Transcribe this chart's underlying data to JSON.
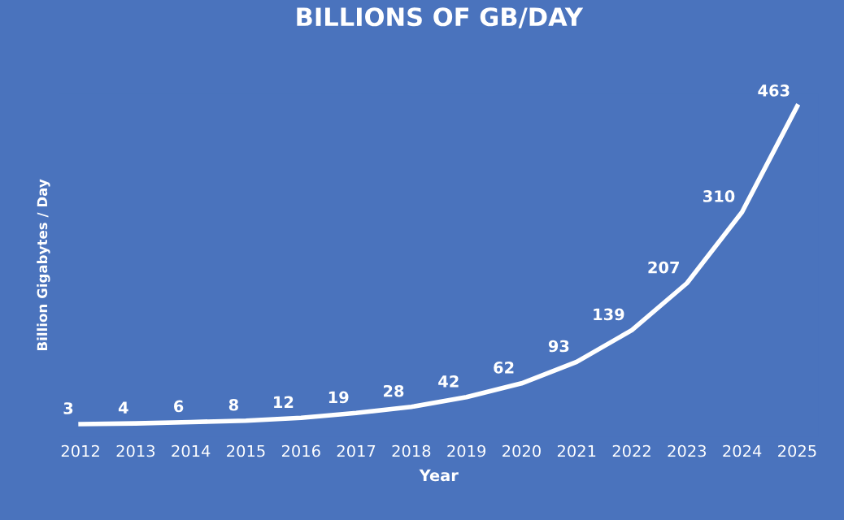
{
  "chart_data": {
    "type": "line",
    "title": "BILLIONS OF GB/DAY",
    "xlabel": "Year",
    "ylabel": "Billion Gigabytes / Day",
    "categories": [
      "2012",
      "2013",
      "2014",
      "2015",
      "2016",
      "2017",
      "2018",
      "2019",
      "2020",
      "2021",
      "2022",
      "2023",
      "2024",
      "2025"
    ],
    "series": [
      {
        "color": "#ffffff",
        "values": [
          3,
          4,
          6,
          8,
          12,
          19,
          28,
          42,
          62,
          93,
          139,
          207,
          310,
          463
        ]
      }
    ],
    "data_labels": true,
    "grid": false,
    "legend": false,
    "line_style": "solid"
  }
}
